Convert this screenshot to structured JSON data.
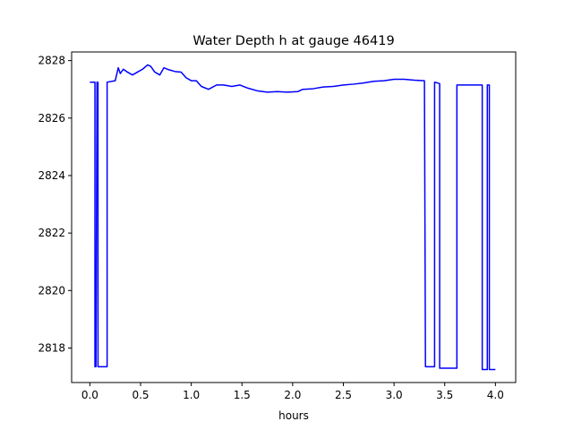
{
  "chart_data": {
    "type": "line",
    "title": "Water Depth h at gauge 46419",
    "xlabel": "hours",
    "ylabel": "",
    "xlim": [
      -0.18,
      4.2
    ],
    "ylim": [
      2816.8,
      2828.3
    ],
    "xticks": [
      0.0,
      0.5,
      1.0,
      1.5,
      2.0,
      2.5,
      3.0,
      3.5,
      4.0
    ],
    "xtick_labels": [
      "0.0",
      "0.5",
      "1.0",
      "1.5",
      "2.0",
      "2.5",
      "3.0",
      "3.5",
      "4.0"
    ],
    "yticks": [
      2818,
      2820,
      2822,
      2824,
      2826,
      2828
    ],
    "ytick_labels": [
      "2818",
      "2820",
      "2822",
      "2824",
      "2826",
      "2828"
    ],
    "grid": false,
    "series": [
      {
        "color": "#0000ff",
        "x": [
          0.0,
          0.05,
          0.05,
          0.06,
          0.07,
          0.08,
          0.08,
          0.09,
          0.09,
          0.17,
          0.17,
          0.25,
          0.28,
          0.3,
          0.33,
          0.37,
          0.42,
          0.47,
          0.52,
          0.57,
          0.6,
          0.64,
          0.69,
          0.73,
          0.78,
          0.84,
          0.9,
          0.95,
          1.0,
          1.05,
          1.1,
          1.17,
          1.25,
          1.32,
          1.4,
          1.48,
          1.55,
          1.65,
          1.75,
          1.85,
          1.95,
          2.05,
          2.1,
          2.2,
          2.3,
          2.4,
          2.5,
          2.6,
          2.7,
          2.8,
          2.9,
          3.0,
          3.1,
          3.2,
          3.3,
          3.31,
          3.31,
          3.4,
          3.4,
          3.45,
          3.45,
          3.62,
          3.62,
          3.87,
          3.87,
          3.92,
          3.92,
          3.94,
          3.94,
          4.0
        ],
        "y": [
          2827.25,
          2827.25,
          2817.35,
          2817.35,
          2827.25,
          2827.25,
          2817.35,
          2817.35,
          2817.35,
          2817.35,
          2827.25,
          2827.3,
          2827.75,
          2827.55,
          2827.7,
          2827.6,
          2827.5,
          2827.6,
          2827.7,
          2827.85,
          2827.8,
          2827.6,
          2827.5,
          2827.75,
          2827.68,
          2827.62,
          2827.6,
          2827.4,
          2827.3,
          2827.3,
          2827.1,
          2827.0,
          2827.15,
          2827.15,
          2827.1,
          2827.15,
          2827.05,
          2826.95,
          2826.9,
          2826.92,
          2826.9,
          2826.92,
          2827.0,
          2827.02,
          2827.08,
          2827.1,
          2827.15,
          2827.18,
          2827.22,
          2827.28,
          2827.3,
          2827.35,
          2827.35,
          2827.32,
          2827.3,
          2817.35,
          2817.35,
          2817.35,
          2827.25,
          2827.2,
          2817.3,
          2817.3,
          2827.15,
          2827.15,
          2817.25,
          2817.25,
          2827.15,
          2827.15,
          2817.25,
          2817.25
        ]
      }
    ]
  }
}
